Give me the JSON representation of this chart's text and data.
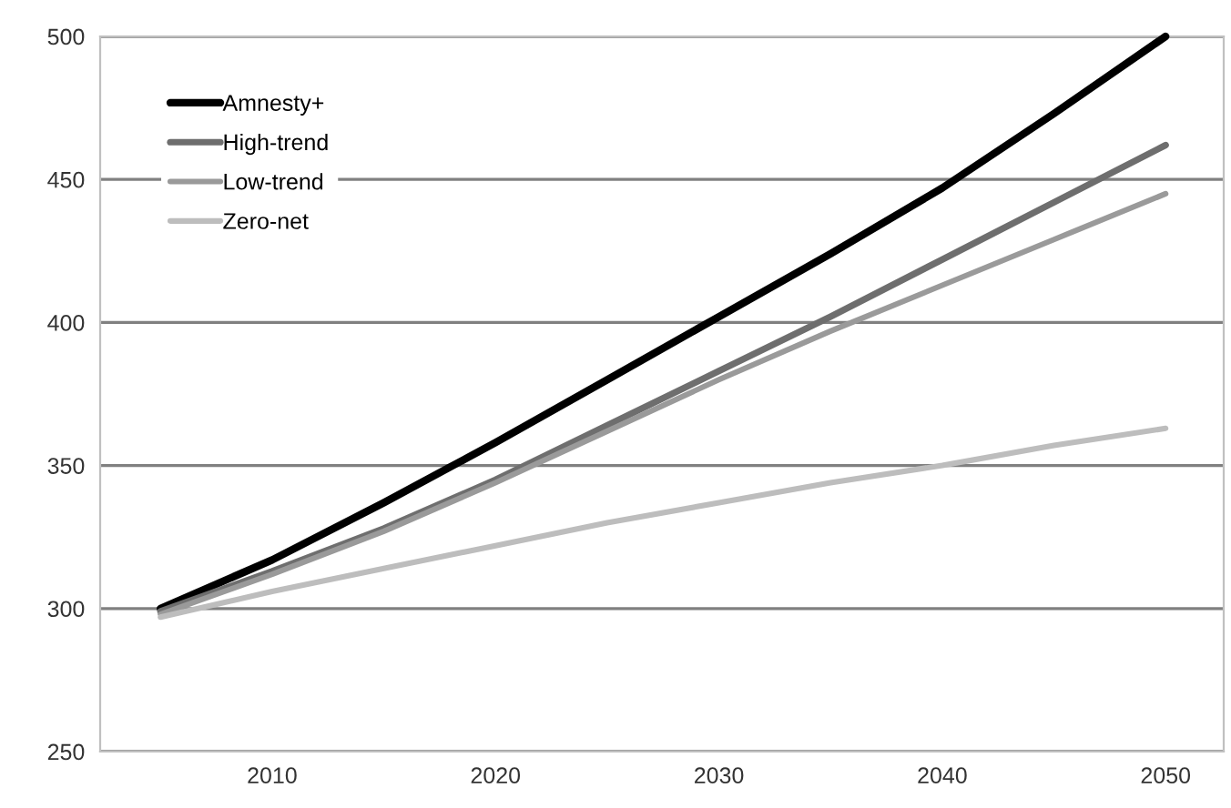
{
  "chart_data": {
    "type": "line",
    "x": [
      2005,
      2010,
      2015,
      2020,
      2025,
      2030,
      2035,
      2040,
      2045,
      2050
    ],
    "series": [
      {
        "name": "Amnesty+",
        "color": "#000000",
        "values": [
          300,
          317,
          337,
          358,
          380,
          402,
          424,
          447,
          473,
          500
        ]
      },
      {
        "name": "High-trend",
        "color": "#6e6e6e",
        "values": [
          299,
          313,
          328,
          345,
          364,
          383,
          402,
          422,
          442,
          462
        ]
      },
      {
        "name": "Low-trend",
        "color": "#9a9a9a",
        "values": [
          298,
          312,
          327,
          344,
          362,
          380,
          397,
          413,
          429,
          445
        ]
      },
      {
        "name": "Zero-net",
        "color": "#bdbdbd",
        "values": [
          297,
          306,
          314,
          322,
          330,
          337,
          344,
          350,
          357,
          363
        ]
      }
    ],
    "xlim": [
      2002.3,
      2052.6
    ],
    "xticks": [
      2010,
      2020,
      2030,
      2040,
      2050
    ],
    "ylim": [
      250,
      500
    ],
    "yticks": [
      250,
      300,
      350,
      400,
      450,
      500
    ],
    "grid": "y",
    "legend": "top left",
    "marker": "none",
    "line_style": "solid"
  }
}
